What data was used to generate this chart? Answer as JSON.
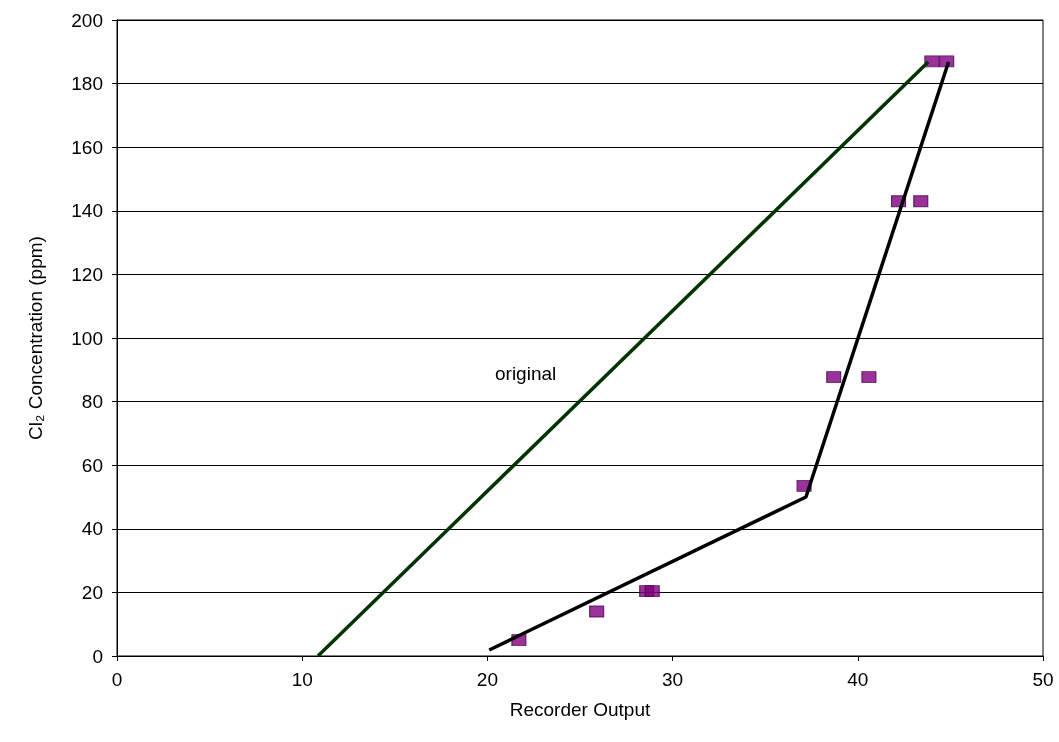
{
  "chart_data": {
    "type": "scatter",
    "xlabel": "Recorder Output",
    "ylabel": "Cl₂ Concentration (ppm)",
    "xlim": [
      0,
      50
    ],
    "xticks": [
      0,
      10,
      20,
      30,
      40,
      50
    ],
    "ylim": [
      0,
      200
    ],
    "yticks": [
      0,
      20,
      40,
      60,
      80,
      100,
      120,
      140,
      160,
      180,
      200
    ],
    "grid": "y",
    "annotations": [
      "original"
    ],
    "series": [
      {
        "type": "line",
        "color": "#003300",
        "marker": "none",
        "line_style": "solid",
        "x": [
          10.85,
          43.8
        ],
        "values": [
          0,
          186.8
        ]
      },
      {
        "type": "line",
        "color": "#000000",
        "marker": "none",
        "line_style": "solid",
        "x": [
          20.1,
          37.2,
          44.9
        ],
        "values": [
          1.9,
          50,
          186.8
        ]
      },
      {
        "color": "#800080",
        "marker": "square",
        "x": [
          21.7,
          25.9,
          28.6,
          28.9,
          37.1,
          38.7,
          40.6,
          42.2,
          43.4,
          44.0,
          44.8
        ],
        "values": [
          5,
          14,
          20.4,
          20.4,
          53.5,
          87.7,
          87.7,
          143,
          143,
          187,
          187
        ]
      }
    ]
  }
}
